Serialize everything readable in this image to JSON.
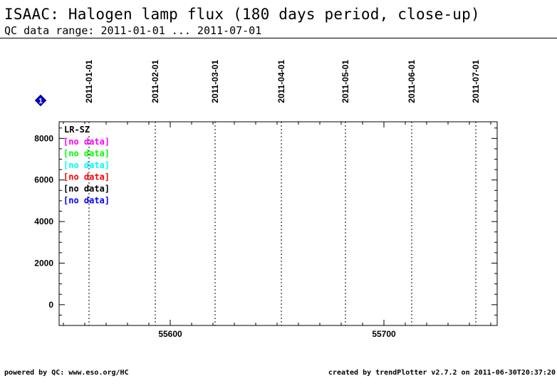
{
  "header": {
    "title": "ISAAC: Halogen lamp flux (180 days period, close-up)",
    "subtitle": "QC data range: 2011-01-01 ... 2011-07-01"
  },
  "footer": {
    "left": "powered by QC: www.eso.org/HC",
    "right": "created by trendPlotter v2.7.2 on 2011-06-30T20:37:20"
  },
  "marker": {
    "label": "1",
    "color": "#0000cc"
  },
  "chart_data": {
    "type": "scatter",
    "x_range": [
      55548,
      55753
    ],
    "y_range": [
      -1000,
      8800
    ],
    "y_ticks": [
      0,
      2000,
      4000,
      6000,
      8000
    ],
    "y_tick_labels": [
      "0",
      "2000",
      "4000",
      "6000",
      "8000"
    ],
    "x_ticks": [
      55600,
      55700
    ],
    "x_tick_labels": [
      "55600",
      "55700"
    ],
    "date_markers": [
      {
        "mjd": 55562,
        "label": "2011-01-01"
      },
      {
        "mjd": 55593,
        "label": "2011-02-01"
      },
      {
        "mjd": 55621,
        "label": "2011-03-01"
      },
      {
        "mjd": 55652,
        "label": "2011-04-01"
      },
      {
        "mjd": 55682,
        "label": "2011-05-01"
      },
      {
        "mjd": 55713,
        "label": "2011-06-01"
      },
      {
        "mjd": 55743,
        "label": "2011-07-01"
      }
    ],
    "legend": {
      "title": "LR-SZ",
      "entries": [
        {
          "label": "[no data]",
          "color": "#ff00ff"
        },
        {
          "label": "[no data]",
          "color": "#00ff00"
        },
        {
          "label": "[no data]",
          "color": "#00ffff"
        },
        {
          "label": "[no data]",
          "color": "#ff0000"
        },
        {
          "label": "[no data]",
          "color": "#000000"
        },
        {
          "label": "[no data]",
          "color": "#0000ff"
        }
      ]
    },
    "series": []
  }
}
